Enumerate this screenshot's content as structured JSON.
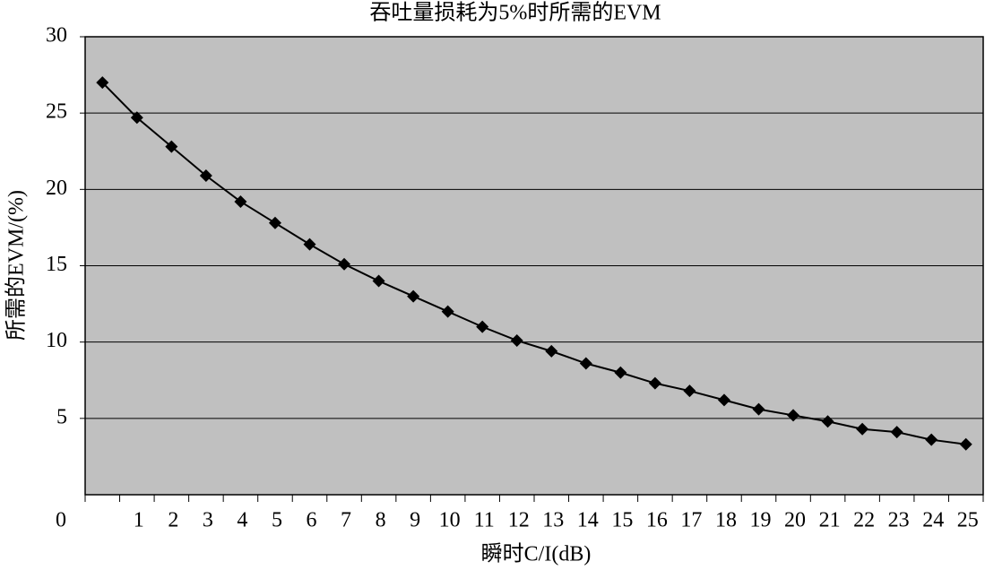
{
  "chart_data": {
    "type": "line",
    "title": "吞吐量损耗为5%时所需的EVM",
    "x_label": "瞬时C/I(dB)",
    "y_label": "所需的EVM/(%)",
    "categories": [
      "0",
      "1",
      "2",
      "3",
      "4",
      "5",
      "6",
      "7",
      "8",
      "9",
      "10",
      "11",
      "12",
      "13",
      "14",
      "15",
      "16",
      "17",
      "18",
      "19",
      "20",
      "21",
      "22",
      "23",
      "24",
      "25"
    ],
    "values": [
      27.0,
      24.7,
      22.8,
      20.9,
      19.2,
      17.8,
      16.4,
      15.1,
      14.0,
      13.0,
      12.0,
      11.0,
      10.1,
      9.4,
      8.6,
      8.0,
      7.3,
      6.8,
      6.2,
      5.6,
      5.2,
      4.8,
      4.3,
      4.1,
      3.6,
      3.3
    ],
    "color": "#000000",
    "ylim": [
      0,
      30
    ],
    "yticks": [
      5,
      10,
      15,
      20,
      25,
      30
    ],
    "grid": true
  }
}
